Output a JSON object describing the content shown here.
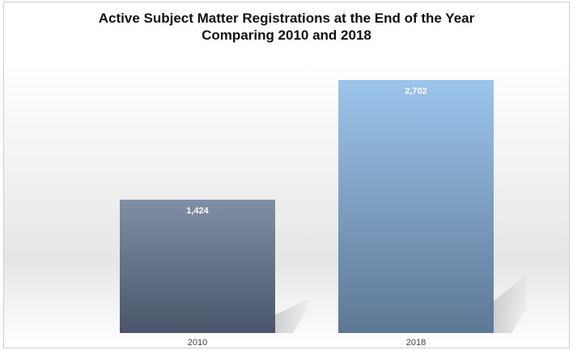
{
  "chart_data": {
    "type": "bar",
    "title": "Active Subject Matter Registrations at the End of the Year",
    "subtitle": "Comparing 2010 and 2018",
    "categories": [
      "2010",
      "2018"
    ],
    "values": [
      1424,
      2702
    ],
    "data_labels": [
      "1,424",
      "2,702"
    ],
    "xlabel": "",
    "ylabel": "",
    "ylim": [
      0,
      2702
    ],
    "grid": false,
    "legend": "none",
    "colors": {
      "bar_2010_top": "#7f8fa6",
      "bar_2010_bottom": "#4a5569",
      "bar_2018_top": "#9cc5ec",
      "bar_2018_bottom": "#5d7894",
      "shadow": "#c9c9c9"
    }
  }
}
